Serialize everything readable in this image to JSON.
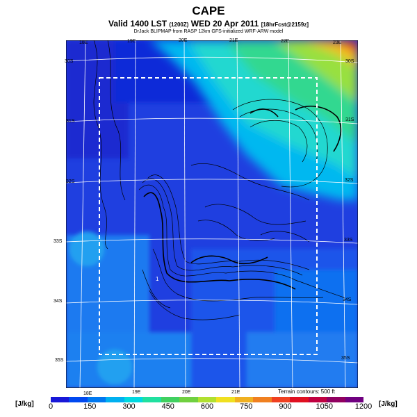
{
  "title": "CAPE",
  "valid": {
    "main": "Valid 1400 LST",
    "utc": "(1200Z)",
    "date": "WED 20 Apr 2011",
    "fcst": "[18hrFcst@2159z]"
  },
  "source": "DrJack BLIPMAP from RASP 12km GFS-initialized WRF-ARW model",
  "top_lon_labels": [
    "18E",
    "19E",
    "20E",
    "21E",
    "22E",
    "23E"
  ],
  "bottom_lon_labels": [
    "18E",
    "19E",
    "20E",
    "21E"
  ],
  "left_lat_labels": [
    "30S",
    "31S",
    "32S",
    "33S",
    "34S",
    "35S"
  ],
  "right_lat_labels": [
    "30S",
    "31S",
    "32S",
    "33S",
    "34S",
    "35S"
  ],
  "terrain_note": "Terrain contours: 500 ft",
  "unit_left": "[J/kg]",
  "unit_right": "[J/kg]",
  "point_marker": "1",
  "colorbar": {
    "labels": [
      "0",
      "150",
      "300",
      "450",
      "600",
      "750",
      "900",
      "1050",
      "1200"
    ],
    "colors": [
      "#1818d8",
      "#0048f0",
      "#0078f0",
      "#00b0f0",
      "#00d8e0",
      "#20e0a0",
      "#40d060",
      "#70d040",
      "#b0e030",
      "#f0e020",
      "#f0b020",
      "#f08020",
      "#f04020",
      "#e01020",
      "#c00040",
      "#900060",
      "#700080"
    ]
  }
}
